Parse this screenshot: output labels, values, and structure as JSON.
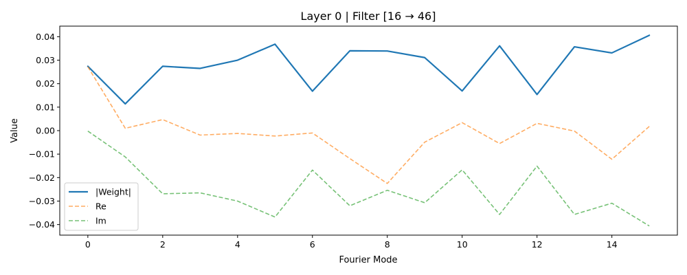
{
  "chart_data": {
    "type": "line",
    "title": "Layer 0 | Filter [16 → 46]",
    "xlabel": "Fourier Mode",
    "ylabel": "Value",
    "x": [
      0,
      1,
      2,
      3,
      4,
      5,
      6,
      7,
      8,
      9,
      10,
      11,
      12,
      13,
      14,
      15
    ],
    "xlim": [
      -0.75,
      15.75
    ],
    "ylim": [
      -0.0445,
      0.0445
    ],
    "xticks": [
      0,
      2,
      4,
      6,
      8,
      10,
      12,
      14
    ],
    "xtick_labels": [
      "0",
      "2",
      "4",
      "6",
      "8",
      "10",
      "12",
      "14"
    ],
    "yticks": [
      -0.04,
      -0.03,
      -0.02,
      -0.01,
      0.0,
      0.01,
      0.02,
      0.03,
      0.04
    ],
    "ytick_labels": [
      "−0.04",
      "−0.03",
      "−0.02",
      "−0.01",
      "0.00",
      "0.01",
      "0.02",
      "0.03",
      "0.04"
    ],
    "grid": false,
    "legend_position": "lower-left",
    "series": [
      {
        "name": "|Weight|",
        "color": "#1f77b4",
        "style": "solid",
        "values": [
          0.0274,
          0.0114,
          0.0274,
          0.0265,
          0.03,
          0.0368,
          0.0168,
          0.034,
          0.0339,
          0.0311,
          0.0169,
          0.0361,
          0.0154,
          0.0357,
          0.0331,
          0.0406
        ]
      },
      {
        "name": "Re",
        "color": "#ff7f0e",
        "style": "dashed",
        "values": [
          0.0272,
          0.001,
          0.0047,
          -0.0019,
          -0.0012,
          -0.0023,
          -0.001,
          -0.0119,
          -0.0225,
          -0.0049,
          0.0034,
          -0.0055,
          0.0031,
          -0.0002,
          -0.0122,
          0.0018
        ]
      },
      {
        "name": "Im",
        "color": "#2ca02c",
        "style": "dashed",
        "values": [
          -0.0002,
          -0.0112,
          -0.0269,
          -0.0265,
          -0.03,
          -0.0368,
          -0.0168,
          -0.032,
          -0.0254,
          -0.0307,
          -0.0167,
          -0.0357,
          -0.0151,
          -0.0357,
          -0.0309,
          -0.0406
        ]
      }
    ]
  }
}
